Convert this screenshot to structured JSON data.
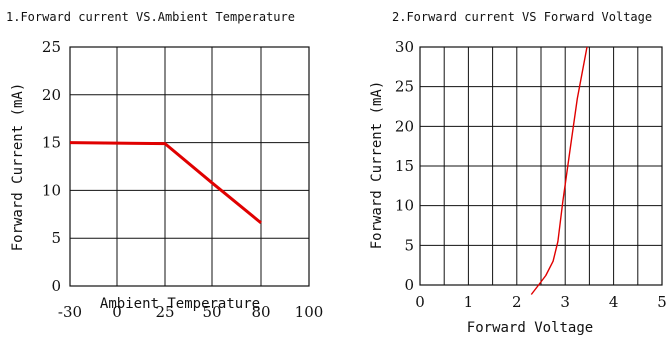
{
  "chart_data": [
    {
      "type": "line",
      "title": "1.Forward current VS.Ambient Temperature",
      "xlabel": "Ambient Temperature",
      "ylabel": "Forward Current (mA)",
      "xlim": [
        -30,
        100
      ],
      "ylim": [
        0,
        25
      ],
      "x_ticks": [
        "-30",
        "0",
        "25",
        "50",
        "80",
        "100"
      ],
      "y_ticks": [
        "0",
        "5",
        "10",
        "15",
        "20",
        "25"
      ],
      "grid": true,
      "series": [
        {
          "color": "#e00000",
          "x": [
            -30,
            25,
            50,
            80
          ],
          "y": [
            15,
            14.9,
            10.8,
            6.6
          ]
        }
      ]
    },
    {
      "type": "line",
      "title": "2.Forward current VS Forward Voltage",
      "xlabel": "Forward Voltage",
      "ylabel": "Forward Current (mA)",
      "xlim": [
        0,
        5
      ],
      "ylim": [
        0,
        30
      ],
      "x_ticks": [
        "0",
        "1",
        "2",
        "3",
        "4",
        "5"
      ],
      "y_ticks": [
        "0",
        "5",
        "10",
        "15",
        "20",
        "25",
        "30"
      ],
      "grid": true,
      "series": [
        {
          "color": "#e00000",
          "x": [
            2.3,
            2.45,
            2.6,
            2.75,
            2.85,
            2.95,
            3.1,
            3.25,
            3.45
          ],
          "y": [
            -1.2,
            0,
            1.2,
            3.0,
            5.5,
            10.5,
            17.0,
            23.5,
            30.0
          ]
        }
      ]
    }
  ]
}
